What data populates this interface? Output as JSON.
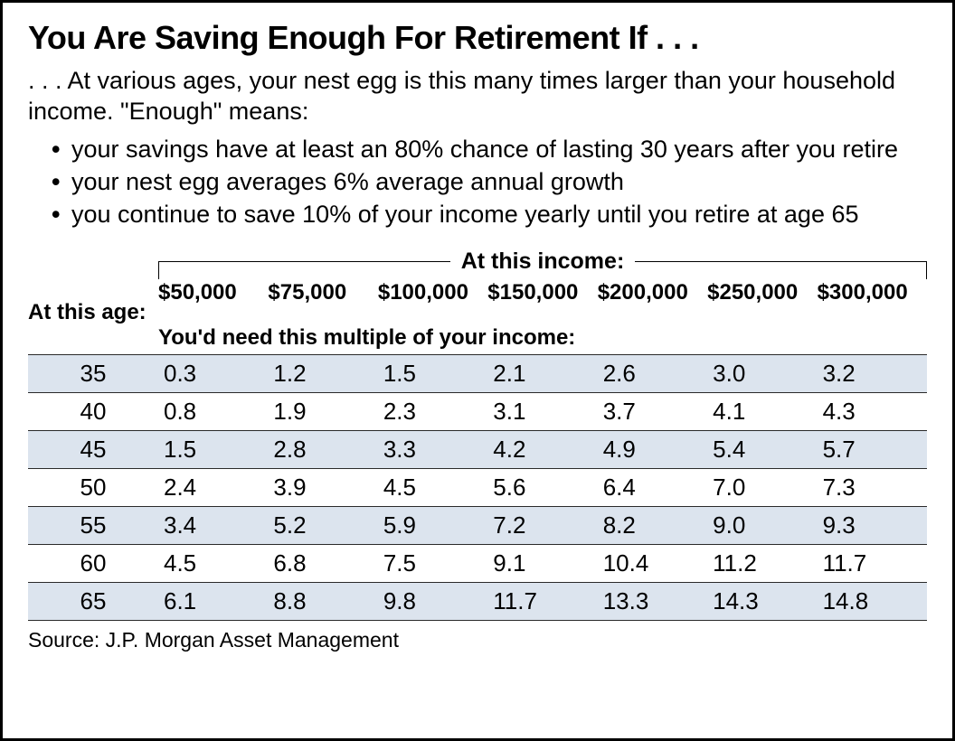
{
  "title": "You Are Saving Enough For Retirement If . . .",
  "subtitle": ". . . At various ages, your nest egg is this many times larger than your household income. \"Enough\" means:",
  "bullets": [
    "your savings have at least an 80% chance of lasting 30 years after you retire",
    "your nest egg averages 6% average annual growth",
    "you continue to save 10% of your income yearly until you retire at age 65"
  ],
  "table": {
    "income_header_label": "At this income:",
    "age_header_label": "At this age:",
    "sub_header": "You'd need this multiple of your income:",
    "columns": [
      "$50,000",
      "$75,000",
      "$100,000",
      "$150,000",
      "$200,000",
      "$250,000",
      "$300,000"
    ],
    "rows": [
      {
        "age": "35",
        "vals": [
          "0.3",
          "1.2",
          "1.5",
          "2.1",
          "2.6",
          "3.0",
          "3.2"
        ]
      },
      {
        "age": "40",
        "vals": [
          "0.8",
          "1.9",
          "2.3",
          "3.1",
          "3.7",
          "4.1",
          "4.3"
        ]
      },
      {
        "age": "45",
        "vals": [
          "1.5",
          "2.8",
          "3.3",
          "4.2",
          "4.9",
          "5.4",
          "5.7"
        ]
      },
      {
        "age": "50",
        "vals": [
          "2.4",
          "3.9",
          "4.5",
          "5.6",
          "6.4",
          "7.0",
          "7.3"
        ]
      },
      {
        "age": "55",
        "vals": [
          "3.4",
          "5.2",
          "5.9",
          "7.2",
          "8.2",
          "9.0",
          "9.3"
        ]
      },
      {
        "age": "60",
        "vals": [
          "4.5",
          "6.8",
          "7.5",
          "9.1",
          "10.4",
          "11.2",
          "11.7"
        ]
      },
      {
        "age": "65",
        "vals": [
          "6.1",
          "8.8",
          "9.8",
          "11.7",
          "13.3",
          "14.3",
          "14.8"
        ]
      }
    ],
    "row_shade_color": "#dce4ee",
    "border_color": "#2a2a2a",
    "header_fontsize": 24,
    "cell_fontsize": 26
  },
  "source_label": "Source:  J.P. Morgan Asset Management",
  "colors": {
    "background": "#ffffff",
    "text": "#000000",
    "frame_border": "#000000"
  }
}
